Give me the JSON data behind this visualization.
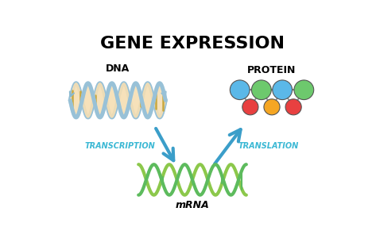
{
  "title": "GENE EXPRESSION",
  "title_fontsize": 16,
  "background_color": "#ffffff",
  "dna_label": "DNA",
  "protein_label": "PROTEIN",
  "mrna_label": "mRNA",
  "transcription_label": "TRANSCRIPTION",
  "translation_label": "TRANSLATION",
  "label_color": "#3BB8D4",
  "dna_strand_color": "#A8C8E0",
  "dna_fill_color": "#F5DEB3",
  "dna_rung_color": "#D4A84B",
  "dna_outline_color": "#7AAAC8",
  "mrna_strand1_color": "#5DBB5D",
  "mrna_strand2_color": "#8CC84B",
  "mrna_rung_color": "#5DBB5D",
  "arrow_color": "#3B9EC9",
  "protein_top_colors": [
    "#5BB8E8",
    "#6DC96D",
    "#5BB8E8",
    "#6DC96D"
  ],
  "protein_bot_colors": [
    "#E84040",
    "#F5A623",
    "#E84040"
  ],
  "protein_line_color": "#888888"
}
